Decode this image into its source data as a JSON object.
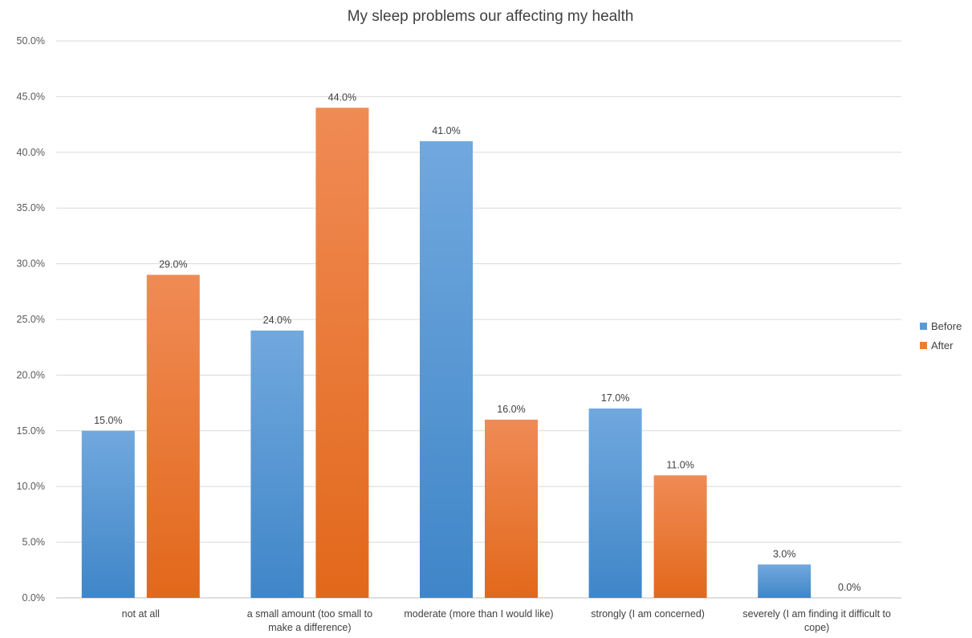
{
  "chart_data": {
    "type": "bar",
    "title": "My sleep problems our affecting my health",
    "categories": [
      "not at all",
      "a small amount (too small to make a difference)",
      "moderate (more than I would like)",
      "strongly (I am concerned)",
      "severely (I am finding it difficult to cope)"
    ],
    "series": [
      {
        "name": "Before",
        "values": [
          15.0,
          24.0,
          41.0,
          17.0,
          3.0
        ],
        "labels": [
          "15.0%",
          "24.0%",
          "41.0%",
          "17.0%",
          "3.0%"
        ]
      },
      {
        "name": "After",
        "values": [
          29.0,
          44.0,
          16.0,
          11.0,
          0.0
        ],
        "labels": [
          "29.0%",
          "44.0%",
          "16.0%",
          "11.0%",
          "0.0%"
        ]
      }
    ],
    "ylim": [
      0,
      50
    ],
    "yticks": [
      "0.0%",
      "5.0%",
      "10.0%",
      "15.0%",
      "20.0%",
      "25.0%",
      "30.0%",
      "35.0%",
      "40.0%",
      "45.0%",
      "50.0%"
    ],
    "grid": true,
    "legend_position": "right",
    "colors": {
      "Before": "#5b9bd5",
      "After": "#ed7d31"
    }
  }
}
